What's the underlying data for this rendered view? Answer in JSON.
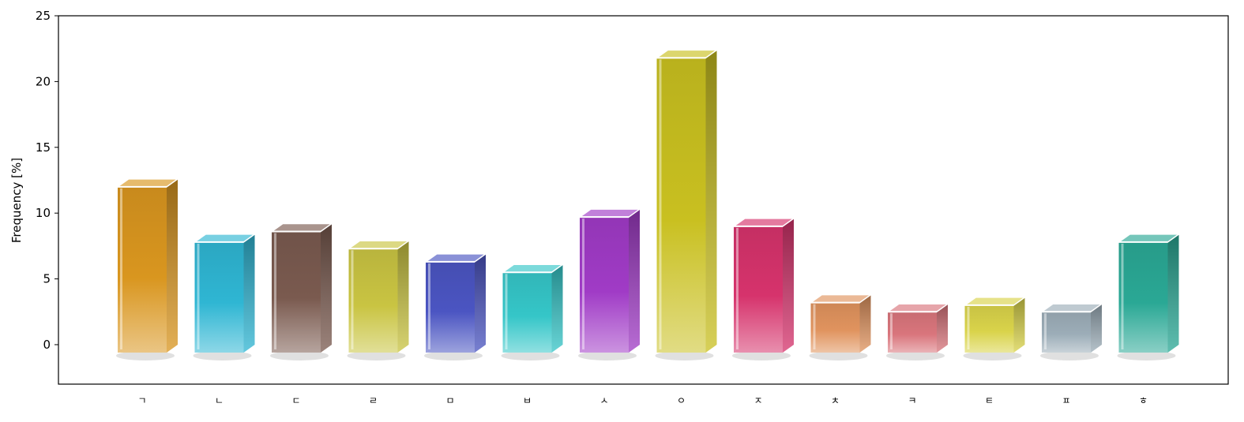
{
  "chart_data": {
    "type": "bar",
    "title": "",
    "xlabel": "",
    "ylabel": "Frequency [%]",
    "ylim": [
      -3,
      25
    ],
    "yticks": [
      0,
      5,
      10,
      15,
      20,
      25
    ],
    "grid": false,
    "categories": [
      "ㄱ",
      "ㄴ",
      "ㄷ",
      "ㄹ",
      "ㅁ",
      "ㅂ",
      "ㅅ",
      "ㅇ",
      "ㅈ",
      "ㅊ",
      "ㅋ",
      "ㅌ",
      "ㅍ",
      "ㅎ"
    ],
    "values": [
      12.0,
      7.8,
      8.6,
      7.3,
      6.3,
      5.5,
      9.7,
      21.8,
      9.0,
      3.2,
      2.5,
      3.0,
      2.5,
      7.8
    ],
    "colors": [
      "#d9961f",
      "#2fb6d3",
      "#7a5a4f",
      "#c9c442",
      "#4b55c2",
      "#35c6c8",
      "#a03bc6",
      "#c9c020",
      "#d6336c",
      "#e0935e",
      "#d9757c",
      "#d9d34a",
      "#9cadb8",
      "#2aa895"
    ]
  }
}
